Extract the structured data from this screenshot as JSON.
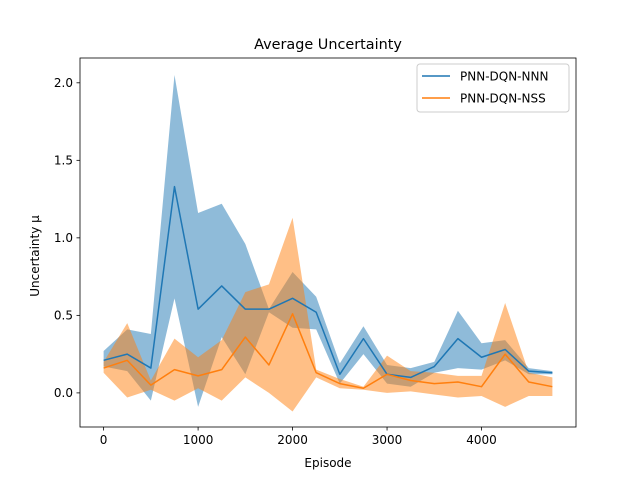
{
  "chart_data": {
    "type": "line",
    "title": "Average Uncertainty",
    "xlabel": "Episode",
    "ylabel": "Uncertainty μ",
    "xlim": [
      -250,
      5000
    ],
    "ylim": [
      -0.22,
      2.16
    ],
    "xticks": [
      0,
      1000,
      2000,
      3000,
      4000
    ],
    "yticks": [
      0.0,
      0.5,
      1.0,
      1.5,
      2.0
    ],
    "xtick_labels": [
      "0",
      "1000",
      "2000",
      "3000",
      "4000"
    ],
    "ytick_labels": [
      "0.0",
      "0.5",
      "1.0",
      "1.5",
      "2.0"
    ],
    "grid": false,
    "legend_position": "top-right",
    "x": [
      0,
      250,
      500,
      750,
      1000,
      1250,
      1500,
      1750,
      2000,
      2250,
      2500,
      2750,
      3000,
      3250,
      3500,
      3750,
      4000,
      4250,
      4500,
      4750
    ],
    "series": [
      {
        "name": "PNN-DQN-NNN",
        "color": "#1f77b4",
        "band_color": "#1f77b4",
        "band_opacity": 0.5,
        "mean": [
          0.21,
          0.25,
          0.16,
          1.33,
          0.54,
          0.69,
          0.54,
          0.54,
          0.61,
          0.52,
          0.12,
          0.35,
          0.12,
          0.1,
          0.17,
          0.35,
          0.23,
          0.28,
          0.14,
          0.13
        ],
        "upper": [
          0.27,
          0.41,
          0.38,
          2.05,
          1.16,
          1.22,
          0.96,
          0.54,
          0.78,
          0.62,
          0.19,
          0.43,
          0.18,
          0.16,
          0.2,
          0.53,
          0.32,
          0.34,
          0.16,
          0.14
        ],
        "lower": [
          0.17,
          0.14,
          -0.05,
          0.61,
          -0.09,
          0.36,
          0.12,
          0.52,
          0.42,
          0.41,
          0.06,
          0.25,
          0.06,
          0.04,
          0.13,
          0.16,
          0.15,
          0.21,
          0.12,
          0.12
        ]
      },
      {
        "name": "PNN-DQN-NSS",
        "color": "#ff7f0e",
        "band_color": "#ff7f0e",
        "band_opacity": 0.5,
        "mean": [
          0.16,
          0.21,
          0.05,
          0.15,
          0.11,
          0.15,
          0.36,
          0.18,
          0.51,
          0.13,
          0.06,
          0.03,
          0.12,
          0.08,
          0.06,
          0.07,
          0.04,
          0.25,
          0.07,
          0.04
        ],
        "upper": [
          0.2,
          0.45,
          0.08,
          0.35,
          0.23,
          0.34,
          0.65,
          0.7,
          1.13,
          0.15,
          0.09,
          0.04,
          0.24,
          0.14,
          0.13,
          0.11,
          0.11,
          0.58,
          0.13,
          0.1
        ],
        "lower": [
          0.13,
          -0.03,
          0.02,
          -0.05,
          0.03,
          -0.05,
          0.1,
          0.0,
          -0.12,
          0.1,
          0.03,
          0.02,
          0.0,
          0.01,
          -0.01,
          -0.03,
          -0.02,
          -0.09,
          -0.02,
          -0.02
        ]
      }
    ]
  }
}
